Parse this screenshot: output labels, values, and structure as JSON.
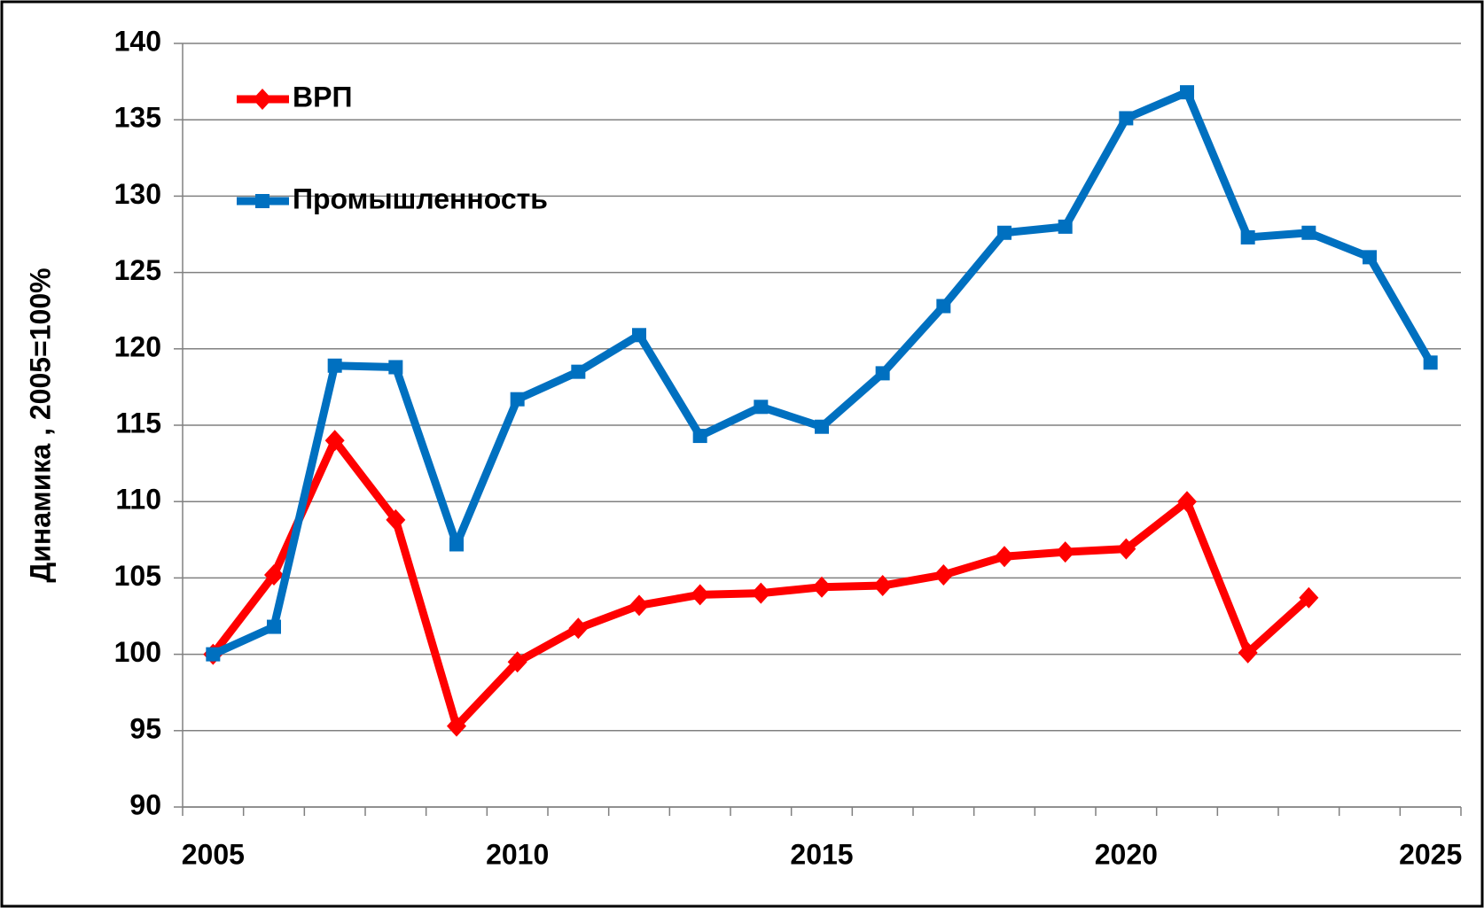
{
  "chart_data": {
    "type": "line",
    "ylabel": "Динамика , 2005=100%",
    "x": [
      2005,
      2006,
      2007,
      2008,
      2009,
      2010,
      2011,
      2012,
      2013,
      2014,
      2015,
      2016,
      2017,
      2018,
      2019,
      2020,
      2021,
      2022,
      2023,
      2024,
      2025
    ],
    "series": [
      {
        "name": "ВРП",
        "color": "#ff0000",
        "marker": "diamond",
        "values": [
          100,
          105.2,
          114.0,
          108.8,
          95.3,
          99.5,
          101.7,
          103.2,
          103.9,
          104.0,
          104.4,
          104.5,
          105.2,
          106.4,
          106.7,
          106.9,
          110.0,
          100.1,
          103.7,
          null,
          null
        ]
      },
      {
        "name": "Промышленность",
        "color": "#0070c0",
        "marker": "square",
        "values": [
          100,
          101.8,
          118.9,
          118.8,
          107.2,
          116.7,
          118.5,
          120.9,
          114.3,
          116.2,
          114.9,
          118.4,
          122.8,
          127.6,
          128.0,
          135.1,
          136.8,
          127.3,
          127.6,
          126.0,
          119.1
        ]
      }
    ],
    "xlim": [
      2004.5,
      2025.5
    ],
    "xticks": [
      2005,
      2010,
      2015,
      2020,
      2025
    ],
    "ylim": [
      90,
      140
    ],
    "yticks": [
      90,
      95,
      100,
      105,
      110,
      115,
      120,
      125,
      130,
      135,
      140
    ],
    "grid": true,
    "legend": "upper left"
  }
}
